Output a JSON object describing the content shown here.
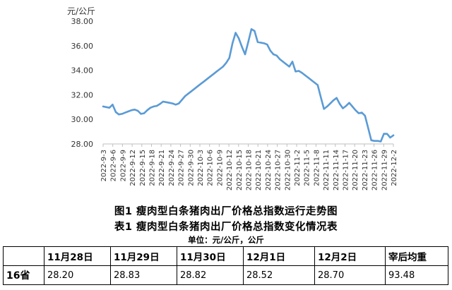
{
  "chart_data": {
    "type": "line",
    "title": "图1 瘦肉型白条猪肉出厂价格总指数运行走势图",
    "unit": "元/公斤",
    "ylim": [
      28,
      38
    ],
    "y_ticks": [
      "28.00",
      "30.00",
      "32.00",
      "34.00",
      "36.00",
      "38.00"
    ],
    "x_tick_labels": [
      "2022-9-3",
      "2022-9-6",
      "2022-9-9",
      "2022-9-12",
      "2022-9-15",
      "2022-9-18",
      "2022-9-21",
      "2022-9-24",
      "2022-9-27",
      "2022-9-30",
      "2022-10-3",
      "2022-10-6",
      "2022-10-9",
      "2022-10-12",
      "2022-10-15",
      "2022-10-18",
      "2022-10-21",
      "2022-10-24",
      "2022-10-27",
      "2022-10-30",
      "2022-11-2",
      "2022-11-5",
      "2022-11-8",
      "2022-11-11",
      "2022-11-14",
      "2022-11-17",
      "2022-11-20",
      "2022-11-23",
      "2022-11-26",
      "2022-11-29",
      "2022-12-2"
    ],
    "line_color": "#5b9bd5",
    "series": [
      {
        "values": [
          31.05,
          31.0,
          30.95,
          31.2,
          30.6,
          30.4,
          30.45,
          30.55,
          30.65,
          30.75,
          30.8,
          30.7,
          30.45,
          30.5,
          30.75,
          30.95,
          31.05,
          31.1,
          31.25,
          31.45,
          31.4,
          31.35,
          31.3,
          31.2,
          31.3,
          31.6,
          31.9,
          32.1,
          32.3,
          32.5,
          32.7,
          32.9,
          33.1,
          33.3,
          33.5,
          33.7,
          33.9,
          34.1,
          34.3,
          34.6,
          35.0,
          36.2,
          37.05,
          36.6,
          35.9,
          35.3,
          36.3,
          37.35,
          37.2,
          36.3,
          36.25,
          36.2,
          36.1,
          35.6,
          35.3,
          35.2,
          34.9,
          34.7,
          34.5,
          34.3,
          34.7,
          33.9,
          33.95,
          33.8,
          33.6,
          33.4,
          33.2,
          33.0,
          32.8,
          31.8,
          30.85,
          31.05,
          31.3,
          31.55,
          31.75,
          31.25,
          30.9,
          31.1,
          31.35,
          31.05,
          30.75,
          30.5,
          30.55,
          30.3,
          29.3,
          28.3,
          28.25,
          28.25,
          28.2,
          28.83,
          28.82,
          28.52,
          28.7
        ]
      }
    ]
  },
  "table": {
    "title": "表1 瘦肉型白条猪肉出厂价格总指数变化情况表",
    "unit": "单位：元/公斤，公斤",
    "headers": [
      "",
      "11月28日",
      "11月29日",
      "11月30日",
      "12月1日",
      "12月2日",
      "宰后均重"
    ],
    "rows": [
      {
        "label": "16省",
        "cells": [
          "28.20",
          "28.83",
          "28.82",
          "28.52",
          "28.70",
          "93.48"
        ]
      }
    ]
  }
}
